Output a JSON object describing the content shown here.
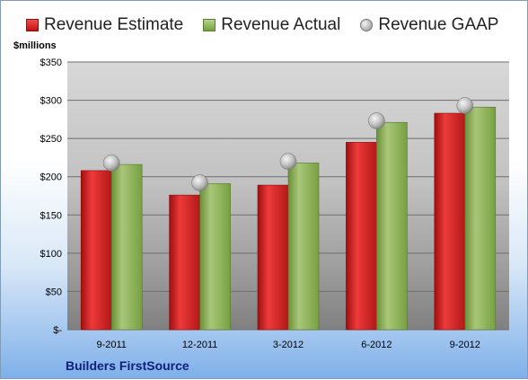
{
  "chart_data": {
    "type": "bar",
    "ylabel": "$millions",
    "categories": [
      "9-2011",
      "12-2011",
      "3-2012",
      "6-2012",
      "9-2012"
    ],
    "series": [
      {
        "name": "Revenue Estimate",
        "values": [
          208,
          176,
          189,
          245,
          283
        ],
        "color": "#cc1f1f"
      },
      {
        "name": "Revenue Actual",
        "values": [
          216,
          191,
          218,
          271,
          291
        ],
        "color": "#8db05a"
      },
      {
        "name": "Revenue GAAP",
        "values": [
          218,
          192,
          220,
          273,
          293
        ],
        "color": "#a8a8a8",
        "marker": "circle"
      }
    ],
    "ylim": [
      0,
      350
    ],
    "yticks": [
      0,
      50,
      100,
      150,
      200,
      250,
      300,
      350
    ],
    "ytick_labels": [
      "$-",
      "$50",
      "$100",
      "$150",
      "$200",
      "$250",
      "$300",
      "$350"
    ],
    "grid": true,
    "legend": "top",
    "footer": "Builders FirstSource"
  }
}
